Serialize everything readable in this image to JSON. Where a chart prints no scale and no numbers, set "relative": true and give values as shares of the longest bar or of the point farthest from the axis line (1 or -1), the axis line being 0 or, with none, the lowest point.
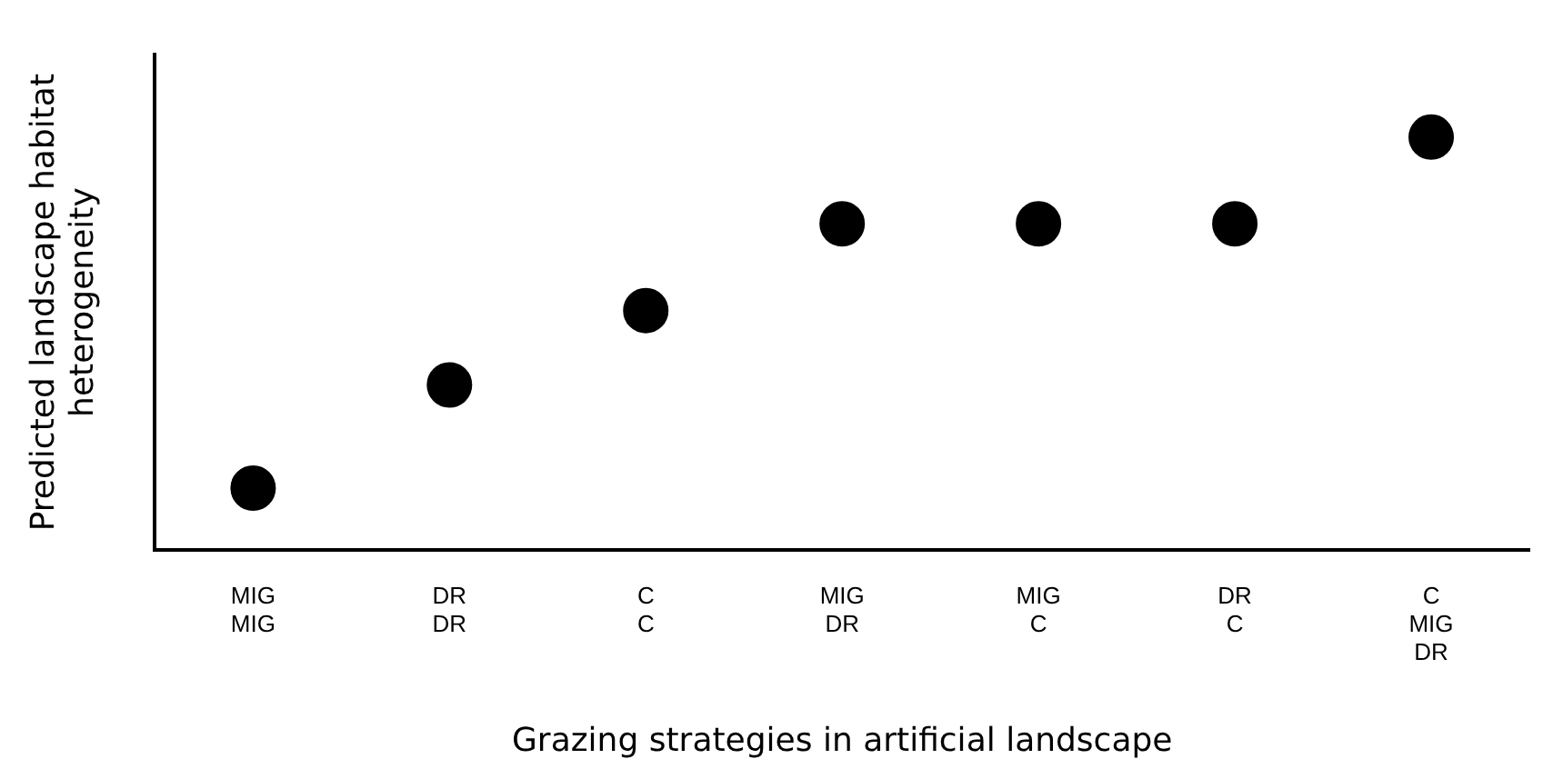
{
  "chart_data": {
    "type": "scatter",
    "relative": true,
    "xlabel": "Grazing strategies in artificial landscape",
    "ylabel": "Predicted landscape habitat heterogeneity",
    "categories": [
      "MIG\nMIG",
      "DR\nDR",
      "C\nC",
      "MIG\nDR",
      "MIG\nC",
      "DR\nC",
      "C\nMIG\nDR"
    ],
    "values": [
      0.15,
      0.4,
      0.58,
      0.79,
      0.79,
      0.79,
      1
    ],
    "color": "#000000",
    "marker": "circle",
    "grid": false,
    "legend": false
  }
}
